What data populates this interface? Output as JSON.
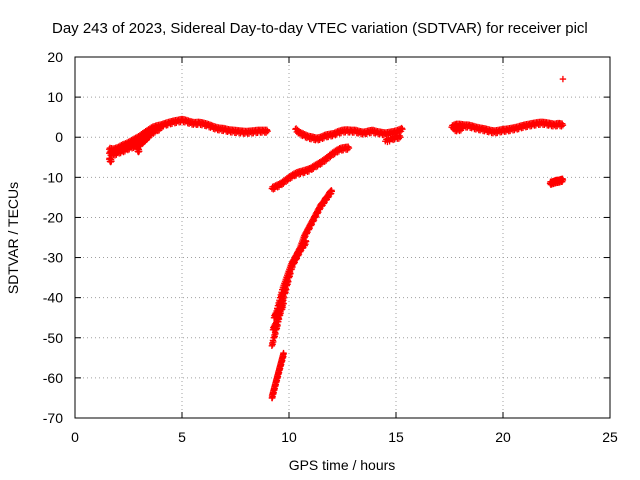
{
  "chart_data": {
    "type": "scatter",
    "title": "Day 243 of 2023, Sidereal Day-to-day VTEC variation (SDTVAR) for receiver picl",
    "xlabel": "GPS time / hours",
    "ylabel": "SDTVAR / TECUs",
    "xlim": [
      0,
      25
    ],
    "ylim": [
      -70,
      20
    ],
    "xticks": [
      "0",
      "5",
      "10",
      "15",
      "20",
      "25"
    ],
    "yticks": [
      "20",
      "10",
      "0",
      "-10",
      "-20",
      "-30",
      "-40",
      "-50",
      "-60",
      "-70"
    ],
    "grid": true,
    "legend": "none",
    "marker": "plus",
    "color": "#ff0000",
    "series": [
      {
        "x": [
          1.6,
          1.8,
          2.0,
          2.2,
          2.4,
          2.6,
          2.8,
          3.0,
          3.2,
          3.4,
          3.6,
          3.8,
          4.0,
          4.2,
          4.4,
          4.6,
          4.8,
          5.0,
          5.2,
          5.4,
          5.6,
          5.8,
          6.0,
          6.2,
          6.4,
          6.6,
          6.8,
          7.0,
          7.2,
          7.4,
          7.6,
          7.8,
          8.0,
          8.2,
          8.4,
          8.6,
          8.8,
          9.0,
          1.6,
          1.8,
          2.0,
          2.2,
          2.4,
          2.6,
          2.8,
          3.0,
          3.2,
          3.4,
          3.6,
          3.8,
          4.0,
          1.6,
          1.7
        ],
        "y": [
          -3.0,
          -3.2,
          -2.8,
          -2.2,
          -1.8,
          -1.2,
          -0.6,
          0.0,
          0.8,
          1.5,
          2.2,
          2.6,
          2.8,
          3.2,
          3.5,
          3.8,
          4.0,
          4.2,
          4.0,
          3.6,
          3.4,
          3.5,
          3.3,
          3.0,
          2.6,
          2.2,
          2.0,
          1.9,
          1.6,
          1.5,
          1.4,
          1.3,
          1.2,
          1.3,
          1.4,
          1.5,
          1.5,
          1.5,
          -4.0,
          -4.4,
          -3.8,
          -3.5,
          -3.0,
          -2.5,
          -2.2,
          -1.5,
          -0.5,
          0.5,
          1.0,
          1.8,
          2.2,
          -5.5,
          -6.0
        ]
      },
      {
        "x": [
          3.0,
          3.1,
          3.2,
          3.3,
          3.4,
          3.5,
          2.9,
          3.0
        ],
        "y": [
          -2.0,
          -1.5,
          -1.0,
          -0.5,
          0.0,
          0.5,
          -3.0,
          -3.5
        ]
      },
      {
        "x": [
          10.3,
          10.5,
          10.7,
          10.9,
          11.1,
          11.3,
          11.5,
          11.7,
          11.9,
          12.1,
          12.3,
          12.5,
          12.7,
          12.9,
          13.1,
          13.3,
          13.5,
          13.7,
          13.9,
          14.1,
          14.3,
          14.5,
          14.7,
          14.9,
          15.1,
          15.3,
          14.5,
          14.8,
          15.0,
          15.2
        ],
        "y": [
          2.0,
          1.0,
          0.5,
          0.0,
          -0.2,
          -0.5,
          -0.2,
          0.3,
          0.5,
          0.7,
          1.2,
          1.5,
          1.6,
          1.5,
          1.5,
          1.2,
          1.0,
          1.3,
          1.5,
          1.2,
          1.0,
          0.8,
          1.0,
          1.2,
          1.5,
          2.0,
          -1.0,
          -0.5,
          0.0,
          0.0
        ]
      },
      {
        "x": [
          9.2,
          9.4,
          9.6,
          9.8,
          10.0,
          10.2,
          10.4,
          10.6,
          10.8,
          11.0,
          11.2,
          11.4,
          11.6,
          11.8,
          12.0,
          12.2,
          12.4,
          12.6,
          12.8
        ],
        "y": [
          -12.8,
          -12.3,
          -11.8,
          -11.0,
          -10.2,
          -9.5,
          -9.0,
          -8.7,
          -8.4,
          -8.0,
          -7.3,
          -6.7,
          -6.0,
          -5.2,
          -4.3,
          -3.6,
          -3.0,
          -2.8,
          -2.7
        ]
      },
      {
        "x": [
          9.3,
          9.4,
          9.5,
          9.6,
          9.7,
          9.8,
          9.9,
          10.0,
          10.1,
          10.2,
          10.3,
          10.4,
          10.5,
          10.6,
          10.7,
          10.8,
          10.9,
          11.0,
          11.1,
          11.2,
          11.3,
          11.4,
          11.5,
          11.6,
          11.7,
          11.8,
          11.9,
          12.0,
          9.2,
          9.3,
          9.4,
          9.5,
          9.6,
          9.7,
          9.8,
          9.9,
          10.0,
          10.1,
          10.2,
          10.3,
          10.4,
          10.5,
          10.6,
          10.7,
          10.8,
          9.25,
          9.35,
          9.45,
          9.55,
          9.65,
          9.75
        ],
        "y": [
          -45.0,
          -44.0,
          -42.0,
          -40.0,
          -38.0,
          -36.5,
          -35.0,
          -33.5,
          -32.0,
          -31.0,
          -30.0,
          -29.0,
          -28.0,
          -26.5,
          -25.0,
          -24.0,
          -23.0,
          -22.0,
          -21.0,
          -20.0,
          -19.0,
          -18.0,
          -17.0,
          -16.5,
          -15.5,
          -15.0,
          -14.0,
          -13.5,
          -52.0,
          -50.0,
          -48.0,
          -46.0,
          -43.0,
          -41.0,
          -39.0,
          -37.0,
          -35.0,
          -33.0,
          -31.5,
          -30.5,
          -29.5,
          -28.5,
          -27.5,
          -27.0,
          -26.0,
          -48.0,
          -47.0,
          -46.0,
          -44.5,
          -43.0,
          -41.5
        ]
      },
      {
        "x": [
          9.2,
          9.25,
          9.3,
          9.35,
          9.4,
          9.45,
          9.5,
          9.55,
          9.6,
          9.65,
          9.7,
          9.75
        ],
        "y": [
          -65.0,
          -64.0,
          -63.0,
          -62.0,
          -61.0,
          -60.0,
          -59.0,
          -58.0,
          -57.0,
          -56.0,
          -55.0,
          -54.0
        ]
      },
      {
        "x": [
          17.6,
          17.8,
          18.0,
          18.2,
          18.4,
          18.6,
          18.8,
          19.0,
          19.2,
          19.4,
          19.6,
          19.8,
          20.0,
          20.2,
          20.4,
          20.6,
          20.8,
          21.0,
          21.2,
          21.4,
          21.6,
          21.8,
          22.0,
          22.2,
          22.4,
          22.6,
          22.8,
          17.7,
          17.9,
          18.1
        ],
        "y": [
          2.5,
          3.0,
          3.0,
          2.8,
          2.8,
          2.5,
          2.2,
          2.0,
          1.8,
          1.5,
          1.3,
          1.5,
          1.7,
          1.8,
          2.0,
          2.2,
          2.5,
          2.8,
          3.0,
          3.2,
          3.4,
          3.5,
          3.4,
          3.2,
          3.0,
          3.2,
          3.0,
          2.0,
          1.8,
          2.2
        ]
      },
      {
        "x": [
          22.2,
          22.3,
          22.4,
          22.5,
          22.6,
          22.7,
          22.8
        ],
        "y": [
          -11.5,
          -11.4,
          -11.2,
          -11.0,
          -11.0,
          -10.8,
          -10.7
        ]
      },
      {
        "x": [
          22.8
        ],
        "y": [
          14.5
        ]
      }
    ]
  }
}
